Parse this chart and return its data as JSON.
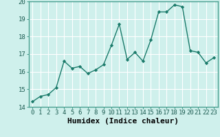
{
  "xlabel": "Humidex (Indice chaleur)",
  "x": [
    0,
    1,
    2,
    3,
    4,
    5,
    6,
    7,
    8,
    9,
    10,
    11,
    12,
    13,
    14,
    15,
    16,
    17,
    18,
    19,
    20,
    21,
    22,
    23
  ],
  "y": [
    14.3,
    14.6,
    14.7,
    15.1,
    16.6,
    16.2,
    16.3,
    15.9,
    16.1,
    16.4,
    17.5,
    18.7,
    16.7,
    17.1,
    16.6,
    17.8,
    19.4,
    19.4,
    19.8,
    19.7,
    17.2,
    17.1,
    16.5,
    16.8
  ],
  "line_color": "#1a7a6a",
  "marker": "D",
  "marker_size": 2.2,
  "line_width": 1.0,
  "bg_color": "#cff0ec",
  "grid_color": "#ffffff",
  "ylim": [
    14,
    20
  ],
  "yticks": [
    14,
    15,
    16,
    17,
    18,
    19,
    20
  ],
  "xlim": [
    -0.5,
    23.5
  ],
  "tick_fontsize": 6.5,
  "xlabel_fontsize": 8,
  "spine_color": "#4aa090"
}
